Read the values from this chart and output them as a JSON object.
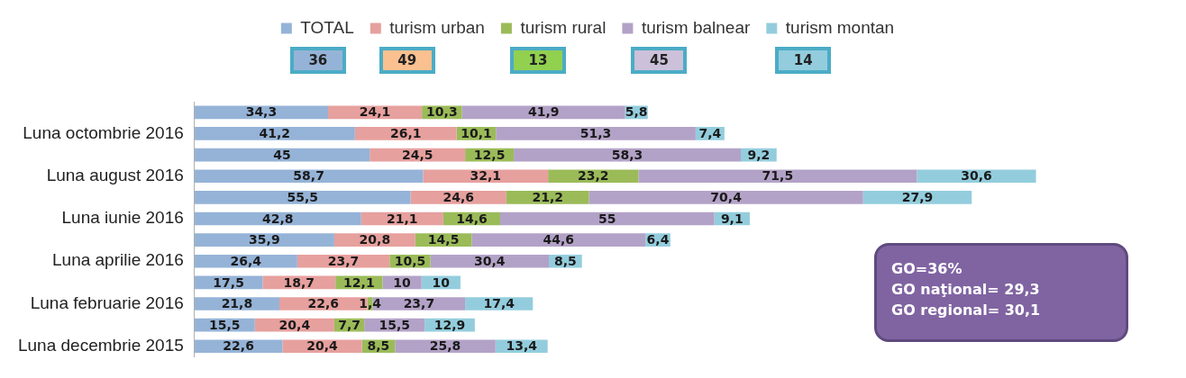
{
  "chart_data": {
    "type": "bar",
    "orientation": "horizontal",
    "stacked": true,
    "legend": "top",
    "grid": false,
    "categories": [
      null,
      "Luna octombrie 2016",
      null,
      "Luna august 2016",
      null,
      "Luna iunie 2016",
      null,
      "Luna aprilie 2016",
      null,
      "Luna februarie 2016",
      null,
      "Luna decembrie 2015"
    ],
    "series": [
      {
        "name": "TOTAL",
        "color": "#95b3d7",
        "values": [
          34.3,
          41.2,
          45,
          58.7,
          55.5,
          42.8,
          35.9,
          26.4,
          17.5,
          21.8,
          15.5,
          22.6
        ],
        "value_labels": [
          "34,3",
          "41,2",
          "45",
          "58,7",
          "55,5",
          "42,8",
          "35,9",
          "26,4",
          "17,5",
          "21,8",
          "15,5",
          "22,6"
        ]
      },
      {
        "name": "turism urban",
        "color": "#e6a09e",
        "values": [
          24.1,
          26.1,
          24.5,
          32.1,
          24.6,
          21.1,
          20.8,
          23.7,
          18.7,
          22.6,
          20.4,
          20.4
        ],
        "value_labels": [
          "24,1",
          "26,1",
          "24,5",
          "32,1",
          "24,6",
          "21,1",
          "20,8",
          "23,7",
          "18,7",
          "22,6",
          "20,4",
          "20,4"
        ]
      },
      {
        "name": "turism rural",
        "color": "#9bbb59",
        "values": [
          10.3,
          10.1,
          12.5,
          23.2,
          21.2,
          14.6,
          14.5,
          10.5,
          12.1,
          1.4,
          7.7,
          8.5
        ],
        "value_labels": [
          "10,3",
          "10,1",
          "12,5",
          "23,2",
          "21,2",
          "14,6",
          "14,5",
          "10,5",
          "12,1",
          "1,4",
          "7,7",
          "8,5"
        ]
      },
      {
        "name": "turism balnear",
        "color": "#b3a2c7",
        "values": [
          41.9,
          51.3,
          58.3,
          71.5,
          70.4,
          55,
          44.6,
          30.4,
          10,
          23.7,
          15.5,
          25.8
        ],
        "value_labels": [
          "41,9",
          "51,3",
          "58,3",
          "71,5",
          "70,4",
          "55",
          "44,6",
          "30,4",
          "10",
          "23,7",
          "15,5",
          "25,8"
        ]
      },
      {
        "name": "turism montan",
        "color": "#93cddd",
        "values": [
          5.8,
          7.4,
          9.2,
          30.6,
          27.9,
          9.1,
          6.4,
          8.5,
          10,
          17.4,
          12.9,
          13.4
        ],
        "value_labels": [
          "5,8",
          "7,4",
          "9,2",
          "30,6",
          "27,9",
          "9,1",
          "6,4",
          "8,5",
          "10",
          "17,4",
          "12,9",
          "13,4"
        ]
      }
    ],
    "annotations": [
      "36",
      "49",
      "13",
      "45",
      "14",
      "GO=36%",
      "GO naţional= 29,3",
      "GO regional= 30,1"
    ]
  }
}
